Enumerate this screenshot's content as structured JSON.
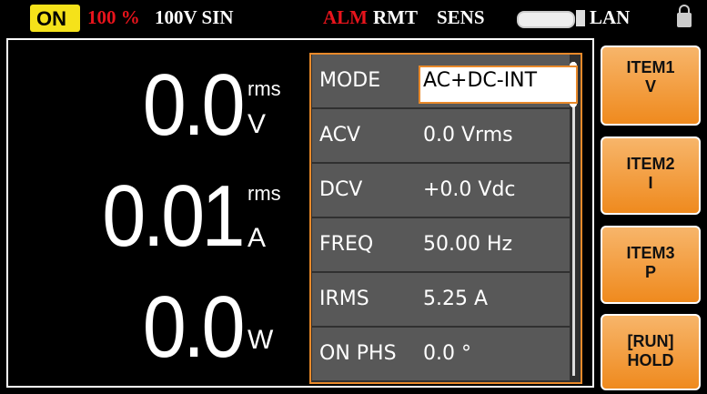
{
  "status_bar": {
    "output": "ON",
    "percent": "100 %",
    "range": "100V SIN",
    "alarm": "ALM",
    "remote": "RMT",
    "sense": "SENS",
    "network": "LAN"
  },
  "readings": [
    {
      "value": "0.0",
      "qualifier": "rms",
      "unit": "V"
    },
    {
      "value": "0.01",
      "qualifier": "rms",
      "unit": "A"
    },
    {
      "value": "0.0",
      "unit": "W"
    }
  ],
  "settings": [
    {
      "label": "MODE",
      "value": "AC+DC-INT"
    },
    {
      "label": "ACV",
      "value": "0.0 Vrms"
    },
    {
      "label": "DCV",
      "value": "+0.0 Vdc"
    },
    {
      "label": "FREQ",
      "value": "50.00 Hz"
    },
    {
      "label": "IRMS",
      "value": "5.25 A"
    },
    {
      "label": "ON PHS",
      "value": "0.0 °"
    }
  ],
  "soft_keys": [
    {
      "line1": "ITEM1",
      "line2": "V"
    },
    {
      "line1": "ITEM2",
      "line2": "I"
    },
    {
      "line1": "ITEM3",
      "line2": "P"
    },
    {
      "line1": "[RUN]",
      "line2": "HOLD"
    }
  ]
}
